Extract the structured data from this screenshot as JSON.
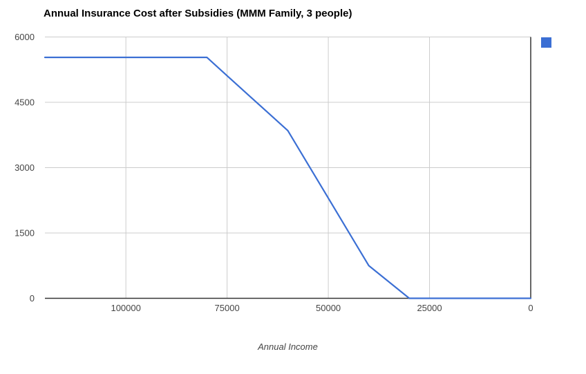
{
  "header": {
    "title": "Annual Insurance Cost after Subsidies (MMM Family, 3 people)"
  },
  "chart_data": {
    "type": "line",
    "title": "Annual Insurance Cost after Subsidies (MMM Family, 3 people)",
    "xlabel": "Annual Income",
    "ylabel": "",
    "xlim": [
      120000,
      0
    ],
    "ylim": [
      0,
      6000
    ],
    "x_axis_reversed": true,
    "grid": true,
    "x_ticks": [
      100000,
      75000,
      50000,
      25000,
      0
    ],
    "x_tick_labels": [
      "100000",
      "75000",
      "50000",
      "25000",
      "0"
    ],
    "y_ticks": [
      0,
      1500,
      3000,
      4500,
      6000
    ],
    "y_tick_labels": [
      "0",
      "1500",
      "3000",
      "4500",
      "6000"
    ],
    "legend": {
      "position": "top-right",
      "label": "",
      "marker_color": "#3b6fd4"
    },
    "series": [
      {
        "name": "Annual Insurance Cost after Subsidies",
        "color": "#3b6fd4",
        "points": [
          [
            120000,
            5532
          ],
          [
            80000,
            5532
          ],
          [
            75000,
            5110
          ],
          [
            70000,
            4690
          ],
          [
            65000,
            4270
          ],
          [
            60000,
            3850
          ],
          [
            55000,
            3075
          ],
          [
            50000,
            2300
          ],
          [
            45000,
            1525
          ],
          [
            40000,
            750
          ],
          [
            35000,
            375
          ],
          [
            30000,
            0
          ],
          [
            25000,
            0
          ],
          [
            20000,
            0
          ],
          [
            15000,
            0
          ],
          [
            10000,
            0
          ],
          [
            5000,
            0
          ],
          [
            0,
            0
          ]
        ]
      }
    ],
    "colors": {
      "line": "#3b6fd4",
      "grid": "#cccccc",
      "axis": "#333333",
      "tick_label": "#444444",
      "title": "#000000"
    }
  }
}
